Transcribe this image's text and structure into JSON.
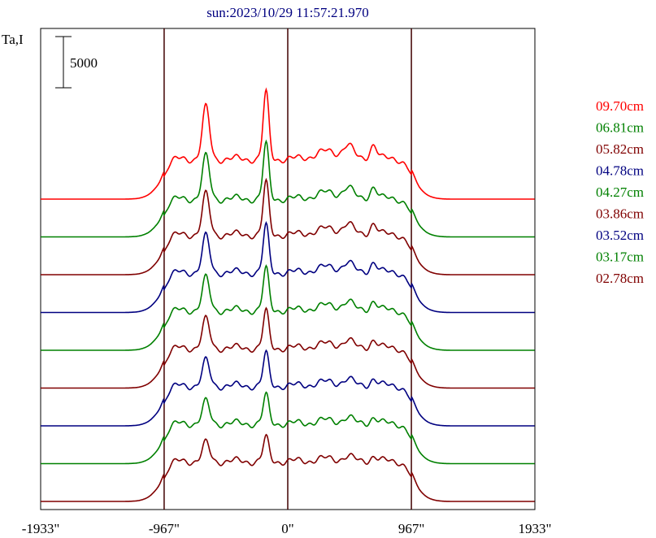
{
  "chart_data": {
    "type": "line",
    "title": "sun:2023/10/29 11:57:21.970",
    "ylabel": "Ta,I",
    "scale_bar_label": "5000",
    "scale_bar_value": 5000,
    "x_ticks": [
      {
        "value": -1933,
        "label": "-1933\""
      },
      {
        "value": -967,
        "label": "-967\""
      },
      {
        "value": 0,
        "label": "0\""
      },
      {
        "value": 967,
        "label": "967\""
      },
      {
        "value": 1933,
        "label": "1933\""
      }
    ],
    "xlim": [
      -1933,
      1933
    ],
    "vertical_lines": [
      -967,
      0,
      967
    ],
    "legend_position": "right",
    "series": [
      {
        "name": "09.70cm",
        "color": "#ff0000",
        "offset": 8,
        "amp": 1.0,
        "base": 1.0
      },
      {
        "name": "06.81cm",
        "color": "#008000",
        "offset": 7,
        "amp": 0.82,
        "base": 0.95
      },
      {
        "name": "05.82cm",
        "color": "#800000",
        "offset": 6,
        "amp": 0.78,
        "base": 1.0
      },
      {
        "name": "04.78cm",
        "color": "#000080",
        "offset": 5,
        "amp": 0.7,
        "base": 1.0
      },
      {
        "name": "04.27cm",
        "color": "#008000",
        "offset": 4,
        "amp": 0.62,
        "base": 1.0
      },
      {
        "name": "03.86cm",
        "color": "#800000",
        "offset": 3,
        "amp": 0.55,
        "base": 1.0
      },
      {
        "name": "03.52cm",
        "color": "#000080",
        "offset": 2,
        "amp": 0.48,
        "base": 1.0
      },
      {
        "name": "03.17cm",
        "color": "#008000",
        "offset": 1,
        "amp": 0.42,
        "base": 1.0
      },
      {
        "name": "02.78cm",
        "color": "#800000",
        "offset": 0,
        "amp": 0.35,
        "base": 1.0
      }
    ]
  }
}
